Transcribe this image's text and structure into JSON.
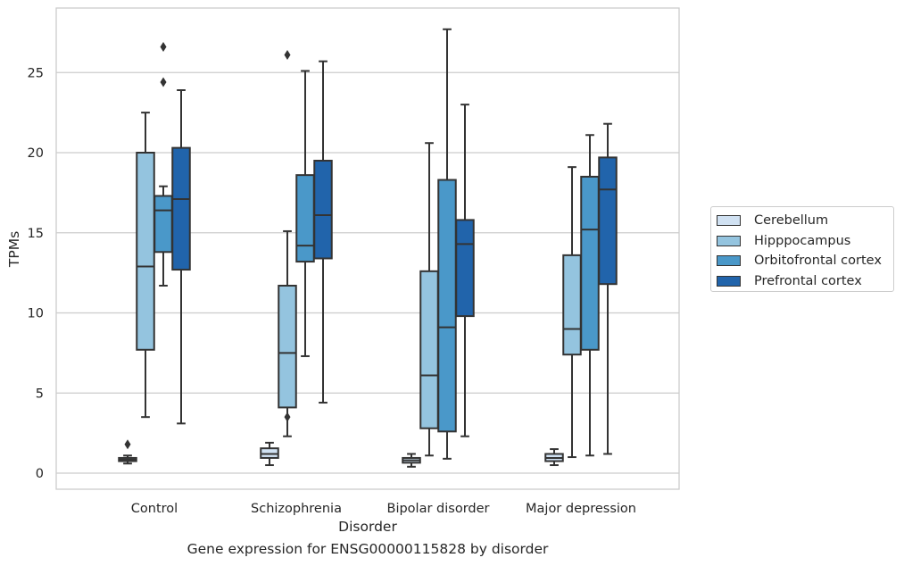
{
  "caption": "Gene expression for ENSG00000115828 by disorder",
  "chart_data": {
    "type": "box",
    "title": "",
    "xlabel": "Disorder",
    "ylabel": "TPMs",
    "ylim": [
      -1,
      29
    ],
    "yticks": [
      0,
      5,
      10,
      15,
      20,
      25
    ],
    "grid": "horizontal",
    "legend_placement": "outside right",
    "categories": [
      "Control",
      "Schizophrenia",
      "Bipolar disorder",
      "Major depression"
    ],
    "series": [
      {
        "name": "Cerebellum",
        "color": "#d0e1f2",
        "boxes": [
          {
            "whislo": 0.6,
            "q1": 0.75,
            "med": 0.85,
            "q3": 0.95,
            "whishi": 1.1,
            "fliers": [
              1.8
            ]
          },
          {
            "whislo": 0.5,
            "q1": 0.95,
            "med": 1.2,
            "q3": 1.55,
            "whishi": 1.9,
            "fliers": []
          },
          {
            "whislo": 0.4,
            "q1": 0.65,
            "med": 0.8,
            "q3": 0.95,
            "whishi": 1.2,
            "fliers": []
          },
          {
            "whislo": 0.5,
            "q1": 0.75,
            "med": 0.95,
            "q3": 1.2,
            "whishi": 1.5,
            "fliers": []
          }
        ]
      },
      {
        "name": "Hipppocampus",
        "color": "#94c4df",
        "boxes": [
          {
            "whislo": 3.5,
            "q1": 7.7,
            "med": 12.9,
            "q3": 20.0,
            "whishi": 22.5,
            "fliers": []
          },
          {
            "whislo": 2.3,
            "q1": 4.1,
            "med": 7.5,
            "q3": 11.7,
            "whishi": 15.1,
            "fliers": [
              26.1,
              3.5
            ]
          },
          {
            "whislo": 1.1,
            "q1": 2.8,
            "med": 6.1,
            "q3": 12.6,
            "whishi": 20.6,
            "fliers": []
          },
          {
            "whislo": 1.0,
            "q1": 7.4,
            "med": 9.0,
            "q3": 13.6,
            "whishi": 19.1,
            "fliers": []
          }
        ]
      },
      {
        "name": "Orbitofrontal cortex",
        "color": "#4a98c9",
        "boxes": [
          {
            "whislo": 11.7,
            "q1": 13.8,
            "med": 16.4,
            "q3": 17.3,
            "whishi": 17.9,
            "fliers": [
              24.4,
              26.6
            ]
          },
          {
            "whislo": 7.3,
            "q1": 13.2,
            "med": 14.2,
            "q3": 18.6,
            "whishi": 25.1,
            "fliers": []
          },
          {
            "whislo": 0.9,
            "q1": 2.6,
            "med": 9.1,
            "q3": 18.3,
            "whishi": 27.7,
            "fliers": []
          },
          {
            "whislo": 1.1,
            "q1": 7.7,
            "med": 15.2,
            "q3": 18.5,
            "whishi": 21.1,
            "fliers": []
          }
        ]
      },
      {
        "name": "Prefrontal cortex",
        "color": "#2164ab",
        "boxes": [
          {
            "whislo": 3.1,
            "q1": 12.7,
            "med": 17.1,
            "q3": 20.3,
            "whishi": 23.9,
            "fliers": []
          },
          {
            "whislo": 4.4,
            "q1": 13.4,
            "med": 16.1,
            "q3": 19.5,
            "whishi": 25.7,
            "fliers": []
          },
          {
            "whislo": 2.3,
            "q1": 9.8,
            "med": 14.3,
            "q3": 15.8,
            "whishi": 23.0,
            "fliers": []
          },
          {
            "whislo": 1.2,
            "q1": 11.8,
            "med": 17.7,
            "q3": 19.7,
            "whishi": 21.8,
            "fliers": []
          }
        ]
      }
    ]
  }
}
